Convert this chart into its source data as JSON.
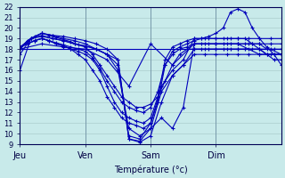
{
  "title": "",
  "xlabel": "Température (°c)",
  "ylabel": "",
  "xlim": [
    0,
    72
  ],
  "ylim": [
    9,
    22
  ],
  "yticks": [
    9,
    10,
    11,
    12,
    13,
    14,
    15,
    16,
    17,
    18,
    19,
    20,
    21,
    22
  ],
  "xtick_positions": [
    0,
    18,
    36,
    54
  ],
  "xtick_labels": [
    "Jeu",
    "Ven",
    "Sam",
    "Dim"
  ],
  "background_color": "#c8eaea",
  "grid_color": "#aacccc",
  "line_color": "#0000bb",
  "series": [
    {
      "x": [
        0,
        3,
        6,
        9,
        12,
        15,
        18,
        21,
        24,
        27,
        30,
        33,
        36,
        39,
        42,
        45,
        48,
        51,
        54,
        57,
        60,
        63,
        66,
        69,
        72
      ],
      "y": [
        17.5,
        19.0,
        19.5,
        19.3,
        19.2,
        19.0,
        18.8,
        18.5,
        18.0,
        17.0,
        9.5,
        9.2,
        9.8,
        13.0,
        15.5,
        16.5,
        17.5,
        17.5,
        17.5,
        17.5,
        17.5,
        17.5,
        17.5,
        17.5,
        17.5
      ]
    },
    {
      "x": [
        0,
        3,
        6,
        9,
        12,
        15,
        18,
        21,
        24,
        27,
        30,
        33,
        36,
        39,
        42,
        45,
        48,
        51,
        54,
        57,
        60,
        63,
        66,
        69,
        72
      ],
      "y": [
        18.0,
        19.0,
        19.5,
        19.3,
        19.0,
        18.8,
        18.5,
        18.0,
        17.5,
        17.0,
        9.5,
        9.3,
        10.5,
        14.0,
        15.5,
        16.5,
        18.0,
        18.0,
        18.0,
        18.0,
        18.0,
        18.0,
        18.0,
        18.0,
        17.5
      ]
    },
    {
      "x": [
        0,
        3,
        6,
        9,
        12,
        15,
        18,
        21,
        24,
        27,
        30,
        33,
        36,
        39,
        42,
        45,
        48,
        51,
        54,
        57,
        60,
        63,
        66,
        69,
        72
      ],
      "y": [
        18.2,
        19.0,
        19.2,
        19.0,
        18.8,
        18.5,
        18.3,
        18.0,
        17.5,
        16.5,
        9.8,
        9.5,
        11.0,
        14.5,
        16.0,
        17.0,
        19.0,
        19.0,
        19.0,
        19.0,
        19.0,
        19.0,
        19.0,
        19.0,
        19.0
      ]
    },
    {
      "x": [
        0,
        3,
        6,
        9,
        12,
        15,
        18,
        21,
        24,
        27,
        30,
        33,
        36,
        39,
        42,
        45,
        48,
        51,
        54,
        57,
        60,
        63,
        66,
        69,
        72
      ],
      "y": [
        16.0,
        19.0,
        19.3,
        19.0,
        18.8,
        18.5,
        18.3,
        18.0,
        17.5,
        16.0,
        10.5,
        9.8,
        10.5,
        11.5,
        10.5,
        12.5,
        18.5,
        18.5,
        18.5,
        18.5,
        18.5,
        18.5,
        18.5,
        18.5,
        18.5
      ]
    },
    {
      "x": [
        0,
        2,
        4,
        6,
        8,
        10,
        12,
        14,
        16,
        18,
        20,
        22,
        24,
        26,
        28,
        30,
        32,
        34,
        36,
        38,
        40,
        42,
        44,
        46,
        48,
        50,
        52,
        54,
        56,
        58,
        60,
        62,
        64,
        66,
        68,
        70,
        72
      ],
      "y": [
        18.0,
        18.8,
        19.2,
        19.5,
        19.3,
        19.1,
        18.9,
        18.7,
        18.4,
        18.2,
        17.5,
        16.5,
        15.5,
        14.5,
        13.5,
        13.0,
        12.5,
        12.5,
        12.8,
        13.5,
        15.0,
        16.5,
        17.5,
        18.0,
        18.0,
        18.0,
        18.0,
        18.0,
        18.0,
        18.0,
        18.0,
        18.0,
        18.0,
        18.0,
        17.5,
        17.5,
        17.5
      ]
    },
    {
      "x": [
        0,
        2,
        4,
        6,
        8,
        10,
        12,
        14,
        16,
        18,
        20,
        22,
        24,
        26,
        28,
        30,
        32,
        34,
        36,
        38,
        40,
        42,
        44,
        46,
        48,
        50,
        52,
        54,
        56,
        58,
        60,
        62,
        64,
        66,
        68,
        70,
        72
      ],
      "y": [
        18.2,
        18.5,
        18.8,
        19.0,
        18.8,
        18.6,
        18.4,
        18.2,
        18.0,
        17.8,
        17.2,
        16.2,
        15.0,
        14.0,
        13.0,
        12.5,
        12.2,
        12.0,
        12.5,
        14.0,
        16.5,
        17.5,
        18.0,
        18.2,
        18.5,
        18.5,
        18.5,
        18.5,
        18.5,
        18.5,
        18.5,
        18.5,
        18.5,
        18.5,
        18.0,
        18.0,
        18.0
      ]
    },
    {
      "x": [
        0,
        2,
        4,
        6,
        8,
        10,
        12,
        14,
        16,
        18,
        20,
        22,
        24,
        26,
        28,
        30,
        32,
        34,
        36,
        38,
        40,
        42,
        44,
        46,
        48,
        50,
        52,
        54,
        56,
        58,
        60,
        62,
        64,
        66,
        68,
        70,
        72
      ],
      "y": [
        18.2,
        18.5,
        18.8,
        19.0,
        18.8,
        18.5,
        18.3,
        18.0,
        17.8,
        17.5,
        17.0,
        16.0,
        14.5,
        13.0,
        12.0,
        11.5,
        11.2,
        11.0,
        11.5,
        13.5,
        17.0,
        18.2,
        18.5,
        18.8,
        19.0,
        19.0,
        19.0,
        19.0,
        19.0,
        19.0,
        19.0,
        19.0,
        18.5,
        18.0,
        17.5,
        17.0,
        17.0
      ]
    },
    {
      "x": [
        0,
        2,
        4,
        6,
        8,
        10,
        12,
        14,
        16,
        18,
        20,
        22,
        24,
        26,
        28,
        30,
        32,
        34,
        36,
        38,
        40,
        42,
        44,
        46,
        48,
        50,
        52,
        54,
        56,
        58,
        60,
        62,
        64,
        66,
        68,
        70,
        72
      ],
      "y": [
        18.2,
        18.5,
        18.8,
        19.0,
        18.8,
        18.5,
        18.3,
        18.0,
        17.5,
        17.0,
        16.0,
        15.0,
        13.5,
        12.5,
        11.5,
        11.0,
        10.8,
        10.5,
        11.0,
        13.0,
        16.5,
        17.8,
        18.2,
        18.5,
        18.8,
        19.0,
        19.2,
        19.5,
        20.0,
        21.5,
        21.8,
        21.5,
        20.0,
        19.0,
        18.2,
        17.5,
        16.5
      ]
    },
    {
      "x": [
        0,
        6,
        12,
        18,
        24,
        30,
        36,
        42,
        48,
        54,
        60,
        66,
        72
      ],
      "y": [
        18.0,
        18.5,
        18.2,
        18.0,
        17.0,
        14.5,
        18.5,
        16.5,
        18.5,
        18.5,
        18.5,
        17.5,
        17.5
      ]
    },
    {
      "x": [
        0,
        72
      ],
      "y": [
        18.0,
        18.0
      ]
    }
  ]
}
